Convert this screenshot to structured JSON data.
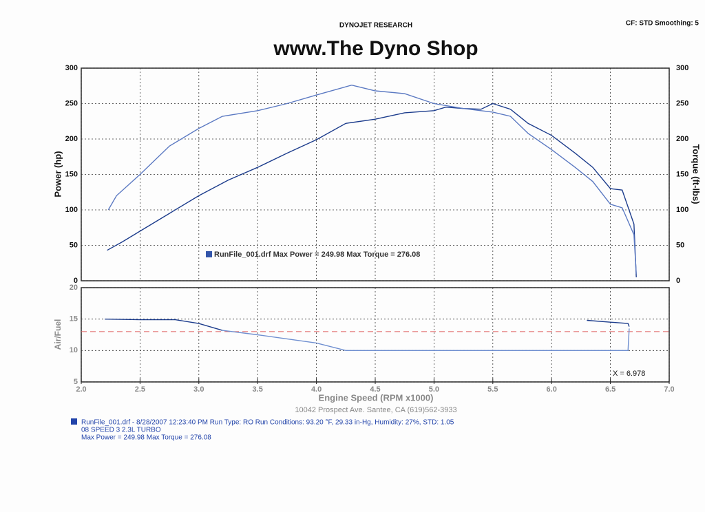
{
  "header": {
    "brand": "DYNOJET RESEARCH",
    "settings": "CF: STD  Smoothing: 5",
    "title": "www.The Dyno Shop"
  },
  "chart_data": [
    {
      "type": "line",
      "ylabel": "Power (hp)",
      "y2label": "Torque (ft-lbs)",
      "ylim": [
        0,
        300
      ],
      "yticks": [
        0,
        50,
        100,
        150,
        200,
        250,
        300
      ],
      "y2lim": [
        0,
        300
      ],
      "y2ticks": [
        0,
        50,
        100,
        150,
        200,
        250,
        300
      ],
      "xlim": [
        2,
        7
      ],
      "grid": true,
      "legend": "RunFile_001.drf Max Power = 249.98    Max Torque = 276.08",
      "series": [
        {
          "color": "#1c3c8c",
          "x": [
            2.22,
            2.35,
            2.5,
            2.75,
            3.0,
            3.25,
            3.5,
            3.75,
            4.0,
            4.25,
            4.5,
            4.75,
            5.0,
            5.1,
            5.25,
            5.4,
            5.5,
            5.65,
            5.8,
            6.0,
            6.2,
            6.35,
            6.5,
            6.6,
            6.7,
            6.72
          ],
          "values": [
            43,
            55,
            70,
            95,
            120,
            142,
            160,
            180,
            199,
            222,
            228,
            237,
            240,
            245,
            243,
            242,
            250,
            242,
            222,
            205,
            180,
            160,
            130,
            128,
            80,
            5
          ]
        },
        {
          "color": "#5b79c2",
          "axis": "y2",
          "x": [
            2.23,
            2.3,
            2.5,
            2.75,
            3.0,
            3.2,
            3.5,
            3.75,
            4.0,
            4.3,
            4.5,
            4.75,
            5.0,
            5.25,
            5.5,
            5.65,
            5.8,
            6.0,
            6.2,
            6.35,
            6.5,
            6.6,
            6.7,
            6.72
          ],
          "values": [
            100,
            120,
            150,
            190,
            215,
            232,
            240,
            250,
            262,
            276,
            268,
            264,
            250,
            243,
            238,
            232,
            208,
            185,
            160,
            140,
            108,
            103,
            65,
            10
          ]
        }
      ]
    },
    {
      "type": "line",
      "ylabel": "Air/Fuel",
      "xlabel": "Engine Speed (RPM x1000)",
      "xlim": [
        2,
        7
      ],
      "xticks": [
        {
          "value": 2,
          "label": "2.0"
        },
        2.5,
        {
          "value": 3,
          "label": "3.0"
        },
        3.5,
        {
          "value": 4,
          "label": "4.0"
        },
        4.5,
        {
          "value": 5,
          "label": "5.0"
        },
        5.5,
        {
          "value": 6,
          "label": "6.0"
        },
        6.5,
        {
          "value": 7,
          "label": "7.0"
        }
      ],
      "ylim": [
        5,
        20
      ],
      "yticks": [
        5,
        10,
        15,
        20
      ],
      "grid": true,
      "reference_line": 13,
      "reference_color": "#e06060",
      "annotation": "X = 6.978",
      "series": [
        {
          "color": "#1c3c8c",
          "x": [
            2.2,
            2.5,
            2.8,
            3.0,
            3.2,
            5.95,
            6.3,
            6.65,
            6.66
          ],
          "values": [
            15,
            14.9,
            14.9,
            14.3,
            13.2,
            null,
            14.8,
            14.3,
            13.8
          ]
        },
        {
          "color": "#6f8fd0",
          "x": [
            3.2,
            3.5,
            4.0,
            4.25,
            5.0,
            6.0,
            6.65,
            6.66
          ],
          "values": [
            13.2,
            12.5,
            11.2,
            10,
            10,
            10,
            10,
            13.5
          ]
        }
      ]
    }
  ],
  "footer": {
    "address": "10042 Prospect Ave. Santee, CA (619)562-3933",
    "run": "RunFile_001.drf - 8/28/2007 12:23:40 PM  Run Type: RO  Run Conditions: 93.20 °F, 29.33 in-Hg,  Humidity:  27%, STD: 1.05",
    "vehicle": "08 SPEED 3  2.3L TURBO",
    "max": "Max Power = 249.98  Max Torque = 276.08"
  }
}
